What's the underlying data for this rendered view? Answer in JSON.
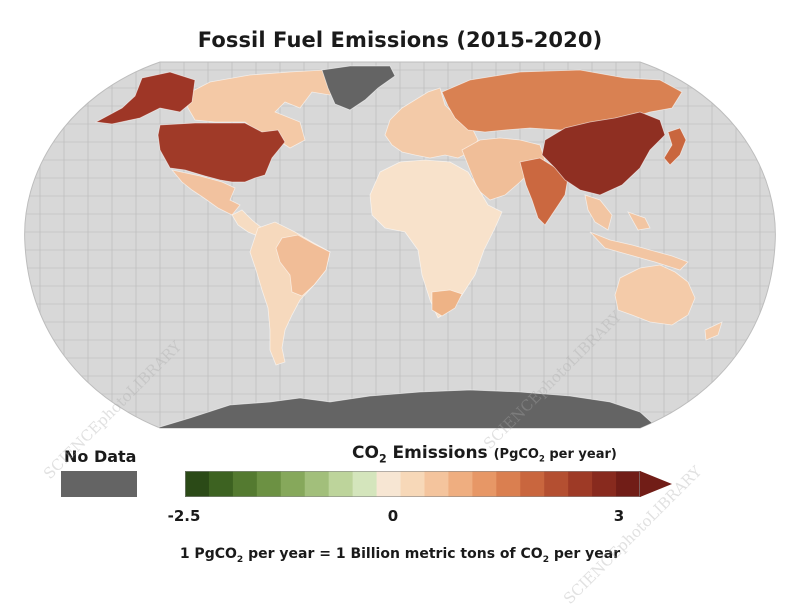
{
  "title": "Fossil Fuel Emissions (2015-2020)",
  "legend": {
    "no_data_label": "No Data",
    "no_data_color": "#646464",
    "title_main": "CO",
    "title_sub": "2",
    "title_rest": " Emissions ",
    "unit_pre": "(PgCO",
    "unit_sub": "2",
    "unit_post": " per year)",
    "ticks": [
      "-2.5",
      "0",
      "3"
    ],
    "colors": [
      "#2b4a17",
      "#3d6221",
      "#547a30",
      "#6c9143",
      "#86a85b",
      "#a2bf7b",
      "#bdd49b",
      "#d4e5bc",
      "#f7e6d3",
      "#f7d8b8",
      "#f4c49d",
      "#efae80",
      "#e79766",
      "#da7f50",
      "#c9663e",
      "#b44f31",
      "#9e3a26",
      "#882a1e",
      "#711d17"
    ]
  },
  "footnote": {
    "p1": "1 PgCO",
    "s1": "2",
    "p2": " per year = 1 Billion metric tons of CO",
    "s2": "2",
    "p3": " per year"
  },
  "map": {
    "ocean_color": "#d8d8d8",
    "graticule_color": "#b9b9b9",
    "regions": [
      {
        "name": "Canada",
        "color": "#f4c9a6"
      },
      {
        "name": "Alaska",
        "color": "#9e3626"
      },
      {
        "name": "United States",
        "color": "#a03a28"
      },
      {
        "name": "Mexico",
        "color": "#f2c29f"
      },
      {
        "name": "Central America",
        "color": "#f6dcc2"
      },
      {
        "name": "Greenland",
        "color": "#646464"
      },
      {
        "name": "South America",
        "color": "#f6d9bd"
      },
      {
        "name": "Brazil",
        "color": "#f1bd97"
      },
      {
        "name": "Europe",
        "color": "#f3caa8"
      },
      {
        "name": "Russia",
        "color": "#d98152"
      },
      {
        "name": "Middle East",
        "color": "#f0be98"
      },
      {
        "name": "Africa",
        "color": "#f8e2cb"
      },
      {
        "name": "South Africa",
        "color": "#eeb386"
      },
      {
        "name": "India",
        "color": "#cb6840"
      },
      {
        "name": "China",
        "color": "#8f2f22"
      },
      {
        "name": "Southeast Asia",
        "color": "#f2c5a2"
      },
      {
        "name": "Japan",
        "color": "#c9663e"
      },
      {
        "name": "Australia",
        "color": "#f4cba9"
      },
      {
        "name": "Antarctica",
        "color": "#646464"
      }
    ]
  },
  "watermark": "SCIENCEphotoLIBRARY"
}
